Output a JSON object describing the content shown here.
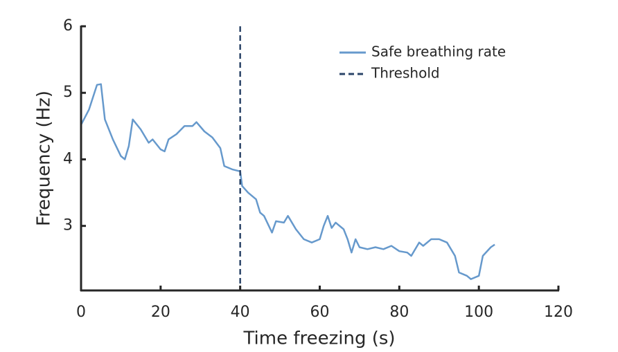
{
  "chart_data": {
    "type": "line",
    "xlabel": "Time freezing (s)",
    "ylabel": "Frequency (Hz)",
    "xlim": [
      0,
      120
    ],
    "xticks": [
      0,
      20,
      40,
      60,
      80,
      100,
      120
    ],
    "ylim": [
      2.03,
      6
    ],
    "yticks": [
      3,
      4,
      5,
      6
    ],
    "legend": "upper right",
    "series": [
      {
        "name": "Safe breathing rate",
        "color": "#6699cc",
        "x": [
          0,
          2,
          4,
          5,
          6,
          8,
          10,
          11,
          12,
          13,
          15,
          17,
          18,
          20,
          21,
          22,
          24,
          26,
          28,
          29,
          31,
          33,
          35,
          36,
          38,
          40,
          40.5,
          42,
          44,
          45,
          46,
          48,
          49,
          51,
          52,
          54,
          56,
          58,
          60,
          61,
          62,
          63,
          64,
          66,
          67,
          68,
          69,
          70,
          72,
          74,
          76,
          78,
          80,
          82,
          83,
          85,
          86,
          88,
          90,
          92,
          94,
          95,
          97,
          98,
          100,
          101,
          103,
          104
        ],
        "values": [
          4.52,
          4.75,
          5.12,
          5.13,
          4.6,
          4.3,
          4.05,
          4.0,
          4.2,
          4.6,
          4.45,
          4.25,
          4.3,
          4.15,
          4.12,
          4.3,
          4.38,
          4.5,
          4.5,
          4.56,
          4.42,
          4.33,
          4.17,
          3.9,
          3.85,
          3.82,
          3.6,
          3.5,
          3.4,
          3.2,
          3.15,
          2.9,
          3.07,
          3.05,
          3.15,
          2.95,
          2.8,
          2.75,
          2.8,
          3.0,
          3.15,
          2.97,
          3.05,
          2.95,
          2.8,
          2.6,
          2.8,
          2.68,
          2.65,
          2.68,
          2.65,
          2.7,
          2.62,
          2.6,
          2.55,
          2.75,
          2.7,
          2.8,
          2.8,
          2.75,
          2.55,
          2.3,
          2.25,
          2.2,
          2.25,
          2.55,
          2.68,
          2.72
        ]
      }
    ],
    "threshold": {
      "name": "Threshold",
      "x": 40,
      "color": "#2b4468"
    }
  }
}
